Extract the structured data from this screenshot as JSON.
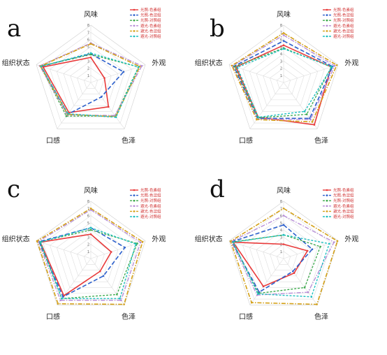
{
  "chart_data": [
    {
      "type": "radar",
      "panel": "a",
      "axes": [
        "风味",
        "外观",
        "色泽",
        "口感",
        "组织状态"
      ],
      "rlim": [
        0,
        8
      ],
      "ticks": [
        "0",
        "1",
        "2",
        "3",
        "4",
        "5",
        "6",
        "7",
        "8"
      ],
      "legend_position": "top-right",
      "series": [
        {
          "name": "光照-色素组",
          "values": [
            3.5,
            2.0,
            4.2,
            5.2,
            7.0
          ]
        },
        {
          "name": "光照-色淀组",
          "values": [
            4.0,
            4.8,
            2.5,
            5.5,
            7.3
          ]
        },
        {
          "name": "光照-对照组",
          "values": [
            3.9,
            7.0,
            5.8,
            5.8,
            7.4
          ]
        },
        {
          "name": "避光-色素组",
          "values": [
            5.5,
            7.5,
            5.7,
            5.6,
            7.5
          ]
        },
        {
          "name": "避光-色淀组",
          "values": [
            5.4,
            7.2,
            5.9,
            5.5,
            7.4
          ]
        },
        {
          "name": "避光-对照组",
          "values": [
            4.1,
            7.0,
            6.0,
            5.4,
            7.3
          ]
        }
      ]
    },
    {
      "type": "radar",
      "panel": "b",
      "axes": [
        "风味",
        "外观",
        "色泽",
        "口感",
        "组织状态"
      ],
      "rlim": [
        0,
        8
      ],
      "ticks": [
        "0",
        "1",
        "2",
        "3",
        "4",
        "5",
        "6",
        "7",
        "8"
      ],
      "legend_position": "top-right",
      "series": [
        {
          "name": "光照-色素组",
          "values": [
            5.2,
            7.0,
            7.3,
            6.0,
            7.0
          ]
        },
        {
          "name": "光照-色淀组",
          "values": [
            5.8,
            7.2,
            6.2,
            6.2,
            7.3
          ]
        },
        {
          "name": "光照-对照组",
          "values": [
            4.8,
            7.0,
            5.5,
            6.1,
            7.2
          ]
        },
        {
          "name": "避光-色素组",
          "values": [
            6.6,
            7.5,
            6.4,
            6.3,
            7.5
          ]
        },
        {
          "name": "避光-色淀组",
          "values": [
            6.9,
            7.8,
            6.8,
            6.4,
            7.6
          ]
        },
        {
          "name": "避光-对照组",
          "values": [
            4.7,
            7.1,
            5.0,
            6.0,
            6.8
          ]
        }
      ]
    },
    {
      "type": "radar",
      "panel": "c",
      "axes": [
        "风味",
        "外观",
        "色泽",
        "口感",
        "组织状态"
      ],
      "rlim": [
        0,
        8
      ],
      "ticks": [
        "0",
        "1",
        "2",
        "3",
        "4",
        "5",
        "6",
        "7",
        "8"
      ],
      "legend_position": "top-right",
      "series": [
        {
          "name": "光照-色素组",
          "values": [
            3.4,
            3.0,
            2.2,
            6.4,
            7.4
          ]
        },
        {
          "name": "光照-色淀组",
          "values": [
            4.3,
            5.0,
            3.0,
            6.6,
            7.6
          ]
        },
        {
          "name": "光照-对照组",
          "values": [
            4.0,
            6.8,
            6.2,
            6.9,
            7.5
          ]
        },
        {
          "name": "避光-色素组",
          "values": [
            6.8,
            7.3,
            7.2,
            7.2,
            7.7
          ]
        },
        {
          "name": "避光-色淀组",
          "values": [
            7.0,
            7.6,
            7.9,
            7.8,
            7.9
          ]
        },
        {
          "name": "避光-对照组",
          "values": [
            4.3,
            6.6,
            6.9,
            6.9,
            7.4
          ]
        }
      ]
    },
    {
      "type": "radar",
      "panel": "d",
      "axes": [
        "风味",
        "外观",
        "色泽",
        "口感",
        "组织状态"
      ],
      "rlim": [
        0,
        8
      ],
      "ticks": [
        "0",
        "1",
        "2",
        "3",
        "4",
        "5",
        "6",
        "7",
        "8"
      ],
      "legend_position": "top-right",
      "series": [
        {
          "name": "光照-色素组",
          "values": [
            2.0,
            3.5,
            2.5,
            4.8,
            7.4
          ]
        },
        {
          "name": "光照-色淀组",
          "values": [
            4.7,
            4.2,
            2.2,
            5.8,
            7.6
          ]
        },
        {
          "name": "光照-对照组",
          "values": [
            3.3,
            5.4,
            5.0,
            6.0,
            7.5
          ]
        },
        {
          "name": "避光-色素组",
          "values": [
            6.0,
            7.4,
            5.8,
            6.3,
            7.7
          ]
        },
        {
          "name": "避光-色淀组",
          "values": [
            7.0,
            7.9,
            7.9,
            7.6,
            7.8
          ]
        },
        {
          "name": "避光-对照组",
          "values": [
            3.3,
            6.7,
            6.6,
            6.1,
            7.4
          ]
        }
      ]
    }
  ],
  "styles": {
    "series_colors": [
      "#e83a3a",
      "#2b5fcc",
      "#3aa84a",
      "#b58ad6",
      "#d4a017",
      "#1fc0c0"
    ],
    "grid_color": "#dddddd",
    "legend_text_color": "#d03030"
  }
}
